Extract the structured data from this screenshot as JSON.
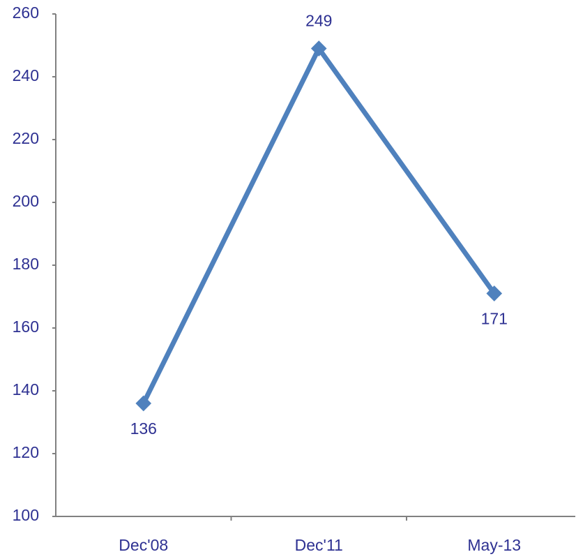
{
  "chart_data": {
    "type": "line",
    "categories": [
      "Dec'08",
      "Dec'11",
      "May-13"
    ],
    "series": [
      {
        "name": "Series 1",
        "color": "#4f81bd",
        "values": [
          136,
          249,
          171
        ]
      }
    ],
    "ylim": [
      100,
      260
    ],
    "yticks": [
      100,
      120,
      140,
      160,
      180,
      200,
      220,
      240,
      260
    ],
    "grid": false
  }
}
